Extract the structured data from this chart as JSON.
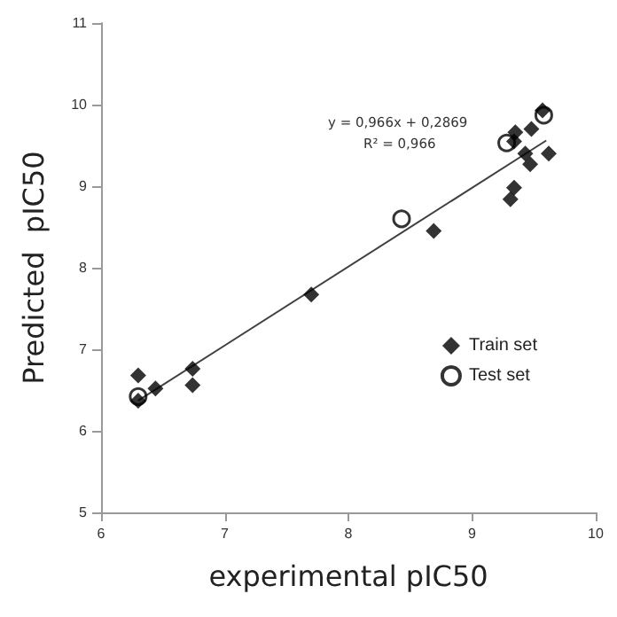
{
  "chart_data": {
    "type": "scatter",
    "xlabel": "experimental pIC50",
    "ylabel": "Predicted  pIC50",
    "annotations": [
      "y = 0,966x + 0,2869",
      "R² = 0,966"
    ],
    "xlim": [
      6,
      10
    ],
    "xticks": [
      6,
      7,
      8,
      9,
      10
    ],
    "ylim": [
      5,
      11
    ],
    "yticks": [
      5,
      6,
      7,
      8,
      9,
      10,
      11
    ],
    "grid": false,
    "legend": "right",
    "series": [
      {
        "name": "Train set",
        "color": "#000000",
        "marker": "diamond",
        "x": [
          6.3,
          6.3,
          6.44,
          6.74,
          6.74,
          7.7,
          8.69,
          9.31,
          9.34,
          9.35,
          9.34,
          9.48,
          9.43,
          9.47,
          9.62,
          9.57
        ],
        "values": [
          6.68,
          6.37,
          6.52,
          6.76,
          6.56,
          7.67,
          8.45,
          8.84,
          8.98,
          9.66,
          9.55,
          9.7,
          9.4,
          9.27,
          9.4,
          9.93
        ]
      },
      {
        "name": "Test set",
        "color": "#000000",
        "marker": "circle",
        "x": [
          6.3,
          8.43,
          9.28,
          9.58
        ],
        "values": [
          6.42,
          8.6,
          9.53,
          9.87
        ]
      },
      {
        "type": "line",
        "color": "#404040",
        "marker": "none",
        "line_style": "solid",
        "x": [
          6.3,
          9.6
        ],
        "values": [
          6.37,
          9.56
        ]
      }
    ]
  }
}
